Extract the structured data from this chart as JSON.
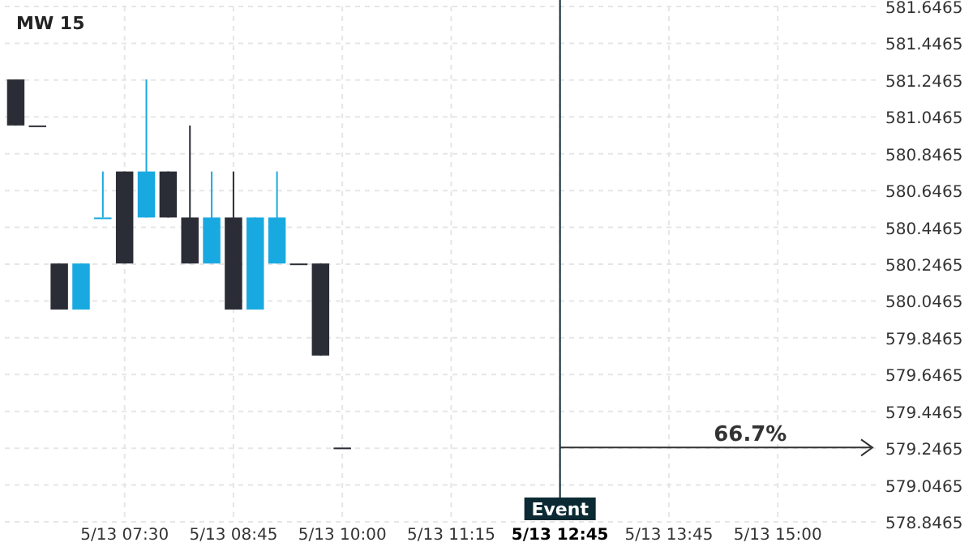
{
  "chart_data": {
    "type": "candlestick",
    "title": "MW 15",
    "categories": [
      null,
      null,
      null,
      null,
      null,
      "5/13 07:30",
      null,
      null,
      null,
      null,
      "5/13 08:45",
      null,
      null,
      null,
      null,
      "5/13 10:00",
      null,
      null,
      null,
      null,
      "5/13 11:15",
      null,
      null,
      null,
      null,
      "5/13 12:45",
      null,
      null,
      null,
      null,
      "5/13 13:45",
      null,
      null,
      null,
      null,
      "5/13 15:00",
      null,
      null,
      null,
      null
    ],
    "ohlc": [
      [
        581.25,
        581.25,
        581.0,
        581.0
      ],
      [
        581.0,
        581.0,
        581.0,
        581.0
      ],
      [
        580.25,
        580.25,
        580.0,
        580.0
      ],
      [
        580.0,
        580.25,
        580.0,
        580.25
      ],
      [
        580.5,
        580.75,
        580.5,
        580.5
      ],
      [
        580.75,
        580.75,
        580.25,
        580.25
      ],
      [
        580.5,
        581.25,
        580.5,
        580.75
      ],
      [
        580.75,
        580.75,
        580.5,
        580.5
      ],
      [
        580.5,
        581.0,
        580.25,
        580.25
      ],
      [
        580.25,
        580.75,
        580.25,
        580.5
      ],
      [
        580.5,
        580.75,
        580.0,
        580.0
      ],
      [
        580.0,
        580.5,
        580.0,
        580.5
      ],
      [
        580.25,
        580.75,
        580.25,
        580.5
      ],
      [
        580.25,
        580.25,
        580.25,
        580.25
      ],
      [
        580.25,
        580.25,
        579.75,
        579.75
      ],
      [
        579.25,
        579.25,
        579.25,
        579.25
      ],
      null,
      null,
      null,
      null,
      null,
      null,
      null,
      null,
      null,
      null,
      null,
      null,
      null,
      null,
      null,
      null,
      null,
      null,
      null,
      null,
      null,
      null,
      null,
      null
    ],
    "colors": [
      "#2b2d36",
      "#2b2d36",
      "#2b2d36",
      "#19a9e1",
      "#19a9e1",
      "#2b2d36",
      "#19a9e1",
      "#2b2d36",
      "#2b2d36",
      "#19a9e1",
      "#2b2d36",
      "#19a9e1",
      "#19a9e1",
      "#2b2d36",
      "#2b2d36",
      "#2b2d36",
      null,
      null,
      null,
      null,
      null,
      null,
      null,
      null,
      null,
      null,
      null,
      null,
      null,
      null,
      null,
      null,
      null,
      null,
      null,
      null,
      null,
      null,
      null,
      null
    ],
    "ylim": [
      578.8465,
      581.6465
    ],
    "yticks": [
      578.8465,
      579.0465,
      579.2465,
      579.4465,
      579.6465,
      579.8465,
      580.0465,
      580.2465,
      580.4465,
      580.6465,
      580.8465,
      581.0465,
      581.2465,
      581.4465,
      581.6465
    ],
    "grid": true,
    "ref_lines": [
      {
        "axis": "x",
        "value": "5/13 12:45",
        "label": "Event",
        "color": "#0b2a33"
      }
    ],
    "annotations": [
      "66.7%"
    ]
  }
}
